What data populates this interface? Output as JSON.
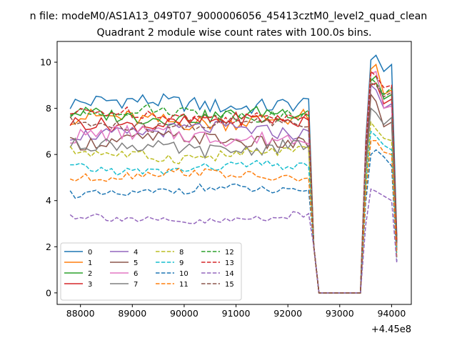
{
  "figure": {
    "suptitle": "n file: modeM0/AS1A13_049T07_9000006056_45413cztM0_level2_quad_clean"
  },
  "chart_data": {
    "type": "line",
    "title": "Quadrant 2 module wise count rates with 100.0s bins.",
    "xlabel": "",
    "ylabel": "",
    "x_offset_label": "+4.45e8",
    "xlim": [
      87550,
      94380
    ],
    "ylim": [
      -0.5,
      10.9
    ],
    "x_ticks": [
      88000,
      89000,
      90000,
      91000,
      92000,
      93000,
      94000
    ],
    "x_tick_labels": [
      "88000",
      "89000",
      "90000",
      "91000",
      "92000",
      "93000",
      "94000"
    ],
    "y_ticks": [
      0,
      2,
      4,
      6,
      8,
      10
    ],
    "y_tick_labels": [
      "0",
      "2",
      "4",
      "6",
      "8",
      "10"
    ],
    "grid": false,
    "legend_placement": "lower-left",
    "legend_columns": 4,
    "series": [
      {
        "name": "0",
        "color": "#1f77b4",
        "dash": "solid",
        "base": 8.2,
        "amp": 0.35,
        "post": [
          10.1,
          10.3,
          9.6,
          9.9
        ]
      },
      {
        "name": "1",
        "color": "#ff7f0e",
        "dash": "solid",
        "base": 7.5,
        "amp": 0.35,
        "post": [
          9.7,
          9.9,
          8.6,
          8.8
        ]
      },
      {
        "name": "2",
        "color": "#2ca02c",
        "dash": "solid",
        "base": 7.7,
        "amp": 0.3,
        "post": [
          9.2,
          9.4,
          8.4,
          8.6
        ]
      },
      {
        "name": "3",
        "color": "#d62728",
        "dash": "solid",
        "base": 7.4,
        "amp": 0.3,
        "post": [
          9.0,
          9.1,
          8.2,
          8.4
        ]
      },
      {
        "name": "4",
        "color": "#9467bd",
        "dash": "solid",
        "base": 7.0,
        "amp": 0.3,
        "post": [
          9.0,
          8.8,
          8.0,
          8.2
        ]
      },
      {
        "name": "5",
        "color": "#8c564b",
        "dash": "solid",
        "base": 6.6,
        "amp": 0.3,
        "post": [
          8.6,
          8.3,
          7.2,
          7.4
        ]
      },
      {
        "name": "6",
        "color": "#e377c2",
        "dash": "solid",
        "base": 6.8,
        "amp": 0.35,
        "post": [
          9.5,
          9.6,
          8.0,
          8.1
        ]
      },
      {
        "name": "7",
        "color": "#7f7f7f",
        "dash": "solid",
        "base": 6.3,
        "amp": 0.3,
        "post": [
          8.0,
          7.8,
          7.3,
          7.6
        ]
      },
      {
        "name": "8",
        "color": "#bcbd22",
        "dash": "dashed",
        "base": 6.0,
        "amp": 0.25,
        "post": [
          7.4,
          7.1,
          6.7,
          6.6
        ]
      },
      {
        "name": "9",
        "color": "#17becf",
        "dash": "dashed",
        "base": 5.4,
        "amp": 0.2,
        "post": [
          7.0,
          6.8,
          6.4,
          6.2
        ]
      },
      {
        "name": "10",
        "color": "#1f77b4",
        "dash": "dashed",
        "base": 4.4,
        "amp": 0.2,
        "post": [
          6.0,
          6.2,
          5.9,
          5.5
        ]
      },
      {
        "name": "11",
        "color": "#ff7f0e",
        "dash": "dashed",
        "base": 5.1,
        "amp": 0.2,
        "post": [
          6.6,
          6.6,
          6.1,
          6.0
        ]
      },
      {
        "name": "12",
        "color": "#2ca02c",
        "dash": "dashed",
        "base": 7.8,
        "amp": 0.25,
        "post": [
          9.3,
          9.1,
          8.6,
          8.9
        ]
      },
      {
        "name": "13",
        "color": "#d62728",
        "dash": "dashed",
        "base": 7.7,
        "amp": 0.25,
        "post": [
          9.6,
          9.4,
          8.9,
          9.0
        ]
      },
      {
        "name": "14",
        "color": "#9467bd",
        "dash": "dashed",
        "base": 3.2,
        "amp": 0.18,
        "post": [
          4.5,
          4.4,
          4.2,
          4.0
        ]
      },
      {
        "name": "15",
        "color": "#8c564b",
        "dash": "dashed",
        "base": 7.3,
        "amp": 0.25,
        "post": [
          9.1,
          9.0,
          8.5,
          8.7
        ]
      }
    ],
    "segments": {
      "active_start": 87800,
      "active_end": 92450,
      "step": 100,
      "fall_points": [
        [
          92500,
          2.0
        ],
        [
          92600,
          0.0
        ]
      ],
      "zero_end": 93400,
      "rise_point": [
        93500,
        6.0
      ],
      "post_x": [
        93600,
        93700,
        93850,
        94000
      ],
      "tail_point": 94100
    }
  }
}
